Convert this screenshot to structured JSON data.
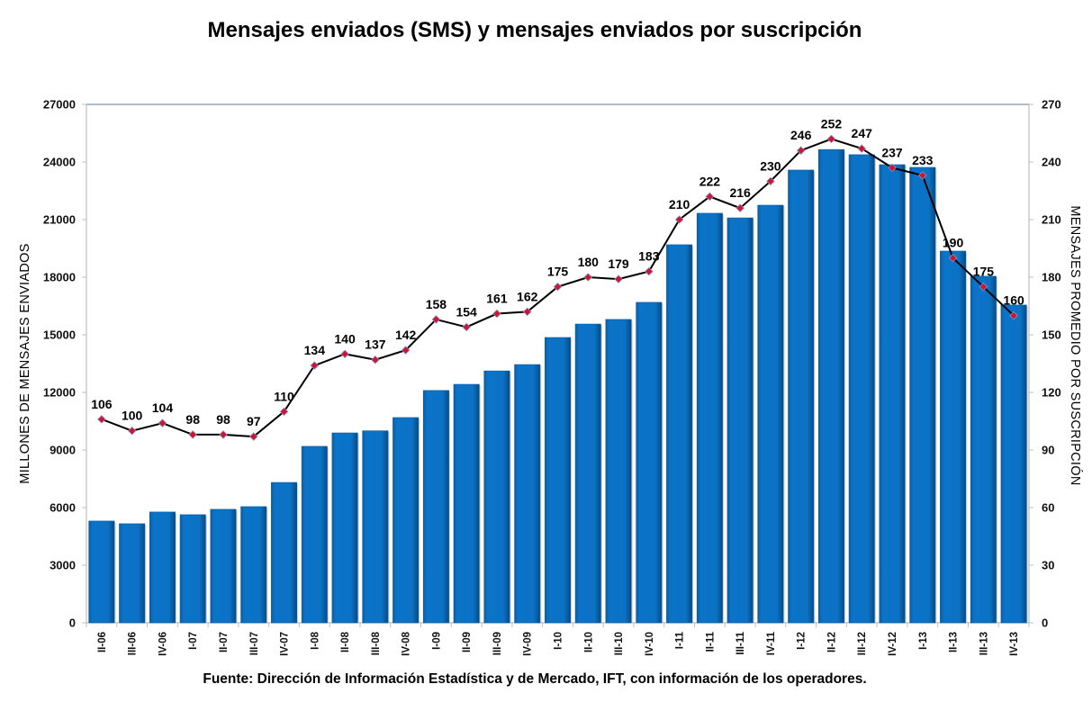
{
  "chart_data": {
    "type": "bar",
    "title": "Mensajes enviados (SMS) y mensajes enviados por suscripción",
    "source": "Fuente: Dirección de Información Estadística y de Mercado, IFT, con información de los operadores.",
    "categories": [
      "II-06",
      "III-06",
      "IV-06",
      "I-07",
      "II-07",
      "III-07",
      "IV-07",
      "I-08",
      "II-08",
      "III-08",
      "IV-08",
      "I-09",
      "II-09",
      "III-09",
      "IV-09",
      "I-10",
      "II-10",
      "III-10",
      "IV-10",
      "I-11",
      "II-11",
      "III-11",
      "IV-11",
      "I-12",
      "II-12",
      "III-12",
      "IV-12",
      "I-13",
      "II-13",
      "III-13",
      "IV-13"
    ],
    "series": [
      {
        "name": "Millones de mensajes enviados",
        "type": "bar",
        "axis": "left",
        "color": "#0B72C4",
        "values": [
          5300,
          5160,
          5770,
          5630,
          5910,
          6050,
          7310,
          9190,
          9890,
          10000,
          10690,
          12100,
          12420,
          13120,
          13450,
          14860,
          15560,
          15800,
          16690,
          19690,
          21330,
          21090,
          21750,
          23580,
          24650,
          24380,
          23860,
          23720,
          19360,
          18050,
          16550
        ]
      },
      {
        "name": "Mensajes promedio por suscripción",
        "type": "line",
        "axis": "right",
        "color": "#000000",
        "marker_color": "#D0152A",
        "values": [
          106,
          100,
          104,
          98,
          98,
          97,
          110,
          134,
          140,
          137,
          142,
          158,
          154,
          161,
          162,
          175,
          180,
          179,
          183,
          210,
          222,
          216,
          230,
          246,
          252,
          247,
          237,
          233,
          190,
          175,
          160
        ]
      }
    ],
    "ylabel": "MILLONES  DE  MENSAJES  ENVIADOS",
    "y2label": "MENSAJES  PROMEDIO  POR  SUSCRIPCIÓN",
    "xlabel": "",
    "ylim": [
      0,
      27000
    ],
    "y2lim": [
      0,
      270
    ],
    "yticks": [
      0,
      3000,
      6000,
      9000,
      12000,
      15000,
      18000,
      21000,
      24000,
      27000
    ],
    "y2ticks": [
      0,
      30,
      60,
      90,
      120,
      150,
      180,
      210,
      240,
      270
    ],
    "grid": false,
    "legend": "none"
  }
}
